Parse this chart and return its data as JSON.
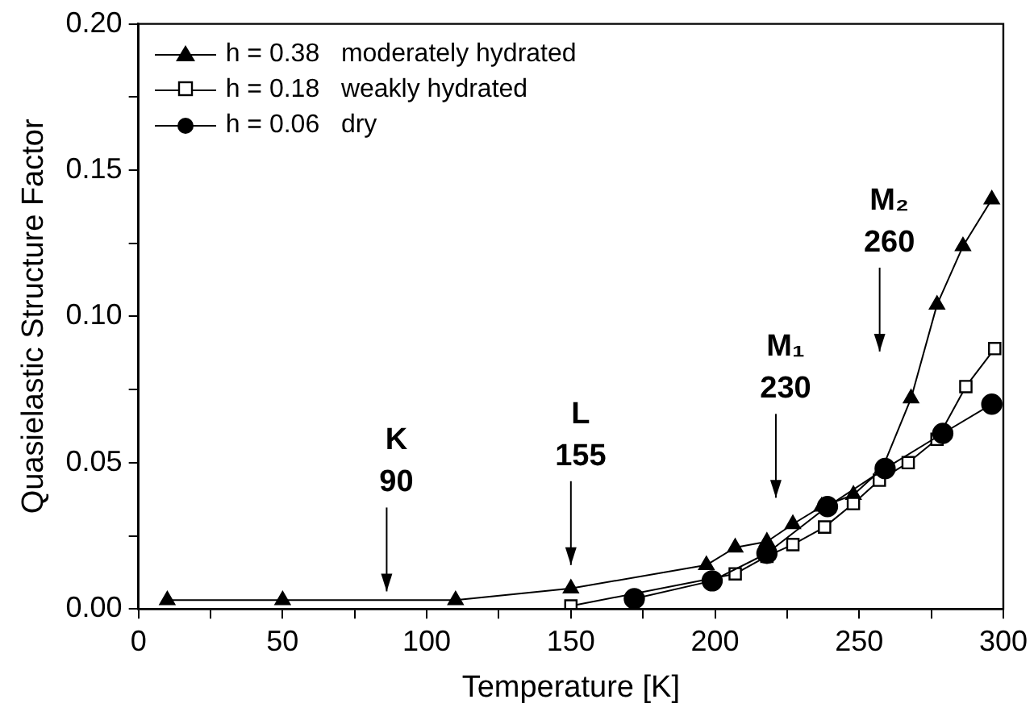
{
  "chart_data": {
    "type": "line",
    "xlabel": "Temperature [K]",
    "ylabel": "Quasielastic Structure Factor",
    "xlim": [
      0,
      300
    ],
    "xticks": [
      0,
      {
        "value": 25,
        "label": null
      },
      50,
      {
        "value": 75,
        "label": null
      },
      100,
      {
        "value": 125,
        "label": null
      },
      150,
      {
        "value": 175,
        "label": null
      },
      200,
      {
        "value": 225,
        "label": null
      },
      250,
      {
        "value": 275,
        "label": null
      },
      300
    ],
    "ylim": [
      0,
      0.2
    ],
    "yticks": [
      {
        "value": 0,
        "label": "0.00"
      },
      {
        "value": 0.025,
        "label": null
      },
      {
        "value": 0.05,
        "label": "0.05"
      },
      {
        "value": 0.075,
        "label": null
      },
      {
        "value": 0.1,
        "label": "0.10"
      },
      {
        "value": 0.125,
        "label": null
      },
      {
        "value": 0.15,
        "label": "0.15"
      },
      {
        "value": 0.175,
        "label": null
      },
      {
        "value": 0.2,
        "label": "0.20"
      }
    ],
    "grid": false,
    "legend": "top left",
    "line_style": "solid",
    "series": [
      {
        "name": "h = 0.38   moderately hydrated",
        "color": "#000000",
        "marker": "triangle",
        "x": [
          10,
          50,
          110,
          150,
          197,
          207,
          218,
          227,
          237,
          248,
          258,
          268,
          277,
          286,
          296
        ],
        "values": [
          0.003,
          0.003,
          0.003,
          0.007,
          0.015,
          0.021,
          0.023,
          0.029,
          0.035,
          0.039,
          0.048,
          0.072,
          0.104,
          0.124,
          0.14
        ]
      },
      {
        "name": "h = 0.18   weakly hydrated",
        "color": "#000000",
        "marker": "square",
        "x": [
          150,
          207,
          218,
          227,
          238,
          248,
          257,
          267,
          277,
          287,
          297
        ],
        "values": [
          0.001,
          0.012,
          0.018,
          0.022,
          0.028,
          0.036,
          0.044,
          0.05,
          0.058,
          0.076,
          0.089
        ]
      },
      {
        "name": "h = 0.06   dry",
        "color": "#000000",
        "marker": "circle",
        "x": [
          172,
          199,
          218,
          239,
          259,
          279,
          296
        ],
        "values": [
          0.0035,
          0.0096,
          0.019,
          0.035,
          0.048,
          0.06,
          0.07
        ]
      }
    ],
    "annotations": [
      "K 90",
      "L 155",
      "M₁ 230",
      "M₂ 260"
    ]
  }
}
